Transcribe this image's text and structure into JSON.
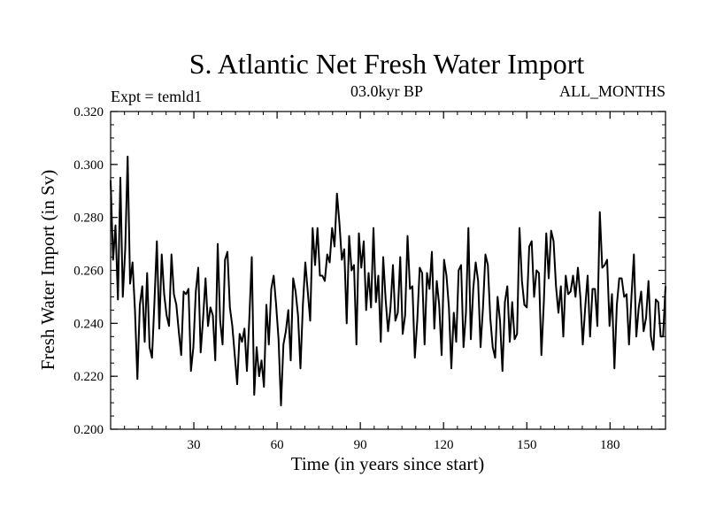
{
  "chart_data": {
    "type": "line",
    "title": "S. Atlantic Net Fresh Water Import",
    "subtitle_left": "Expt = temld1",
    "subtitle_center": "03.0kyr BP",
    "subtitle_right": "ALL_MONTHS",
    "xlabel": "Time (in years since start)",
    "ylabel": "Fresh Water Import (in Sv)",
    "xlim": [
      0,
      200
    ],
    "ylim": [
      0.2,
      0.32
    ],
    "x_ticks": [
      "30",
      "60",
      "90",
      "120",
      "150",
      "180"
    ],
    "y_ticks": [
      "0.200",
      "0.220",
      "0.240",
      "0.260",
      "0.280",
      "0.300",
      "0.320"
    ],
    "color": "#000000",
    "series": [
      {
        "name": "Net fresh water import",
        "values": [
          0.294,
          0.264,
          0.277,
          0.249,
          0.295,
          0.25,
          0.268,
          0.303,
          0.255,
          0.263,
          0.245,
          0.219,
          0.247,
          0.254,
          0.233,
          0.259,
          0.231,
          0.227,
          0.248,
          0.271,
          0.238,
          0.266,
          0.251,
          0.243,
          0.239,
          0.266,
          0.251,
          0.247,
          0.237,
          0.228,
          0.252,
          0.251,
          0.253,
          0.222,
          0.231,
          0.252,
          0.261,
          0.229,
          0.242,
          0.257,
          0.239,
          0.246,
          0.243,
          0.226,
          0.27,
          0.241,
          0.232,
          0.264,
          0.267,
          0.246,
          0.239,
          0.228,
          0.217,
          0.236,
          0.233,
          0.238,
          0.222,
          0.242,
          0.265,
          0.213,
          0.231,
          0.22,
          0.226,
          0.216,
          0.247,
          0.232,
          0.253,
          0.258,
          0.247,
          0.234,
          0.209,
          0.232,
          0.237,
          0.245,
          0.226,
          0.257,
          0.252,
          0.243,
          0.223,
          0.247,
          0.263,
          0.252,
          0.241,
          0.276,
          0.262,
          0.276,
          0.258,
          0.258,
          0.256,
          0.266,
          0.263,
          0.276,
          0.269,
          0.289,
          0.278,
          0.264,
          0.268,
          0.24,
          0.273,
          0.26,
          0.262,
          0.232,
          0.274,
          0.261,
          0.271,
          0.245,
          0.259,
          0.246,
          0.276,
          0.248,
          0.258,
          0.233,
          0.265,
          0.249,
          0.237,
          0.246,
          0.262,
          0.241,
          0.244,
          0.265,
          0.236,
          0.243,
          0.273,
          0.253,
          0.254,
          0.227,
          0.241,
          0.261,
          0.259,
          0.232,
          0.259,
          0.253,
          0.267,
          0.238,
          0.256,
          0.247,
          0.228,
          0.264,
          0.258,
          0.246,
          0.223,
          0.244,
          0.233,
          0.26,
          0.262,
          0.231,
          0.244,
          0.276,
          0.234,
          0.253,
          0.263,
          0.256,
          0.231,
          0.246,
          0.266,
          0.262,
          0.242,
          0.231,
          0.227,
          0.25,
          0.241,
          0.222,
          0.248,
          0.254,
          0.233,
          0.248,
          0.234,
          0.236,
          0.276,
          0.256,
          0.247,
          0.246,
          0.269,
          0.271,
          0.25,
          0.26,
          0.259,
          0.228,
          0.248,
          0.274,
          0.257,
          0.275,
          0.271,
          0.254,
          0.244,
          0.254,
          0.235,
          0.258,
          0.251,
          0.252,
          0.258,
          0.25,
          0.261,
          0.25,
          0.232,
          0.246,
          0.258,
          0.235,
          0.253,
          0.253,
          0.239,
          0.282,
          0.261,
          0.262,
          0.264,
          0.239,
          0.251,
          0.223,
          0.247,
          0.257,
          0.257,
          0.25,
          0.251,
          0.232,
          0.25,
          0.266,
          0.235,
          0.246,
          0.252,
          0.237,
          0.242,
          0.256,
          0.235,
          0.23,
          0.249,
          0.248,
          0.235,
          0.235,
          0.254
        ]
      }
    ]
  }
}
